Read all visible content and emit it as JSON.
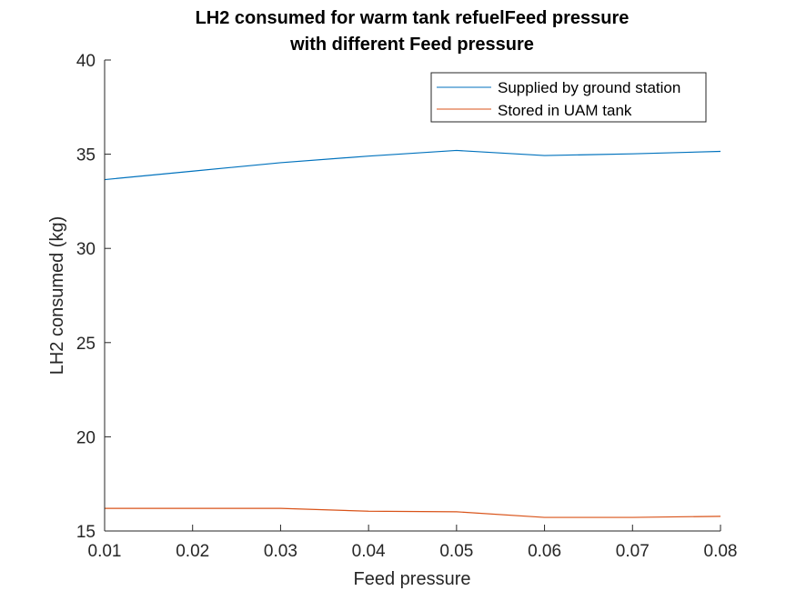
{
  "chart_data": {
    "type": "line",
    "title_line1": "LH2 consumed for warm tank refuelFeed pressure",
    "title_line2": "with different Feed pressure",
    "xlabel": "Feed pressure",
    "ylabel": "LH2 consumed (kg)",
    "xlim": [
      0.01,
      0.08
    ],
    "ylim": [
      15,
      40
    ],
    "x_ticks": [
      0.01,
      0.02,
      0.03,
      0.04,
      0.05,
      0.06,
      0.07,
      0.08
    ],
    "x_tick_labels": [
      "0.01",
      "0.02",
      "0.03",
      "0.04",
      "0.05",
      "0.06",
      "0.07",
      "0.08"
    ],
    "y_ticks": [
      15,
      20,
      25,
      30,
      35,
      40
    ],
    "y_tick_labels": [
      "15",
      "20",
      "25",
      "30",
      "35",
      "40"
    ],
    "grid": false,
    "legend_position": "top-right",
    "x": [
      0.01,
      0.02,
      0.03,
      0.04,
      0.05,
      0.06,
      0.07,
      0.08
    ],
    "series": [
      {
        "name": "Supplied by ground station",
        "color": "#0072BD",
        "values": [
          33.65,
          34.1,
          34.55,
          34.9,
          35.2,
          34.93,
          35.02,
          35.15
        ]
      },
      {
        "name": "Stored in UAM tank",
        "color": "#D95319",
        "values": [
          16.2,
          16.2,
          16.2,
          16.05,
          16.02,
          15.72,
          15.72,
          15.78
        ]
      }
    ]
  }
}
